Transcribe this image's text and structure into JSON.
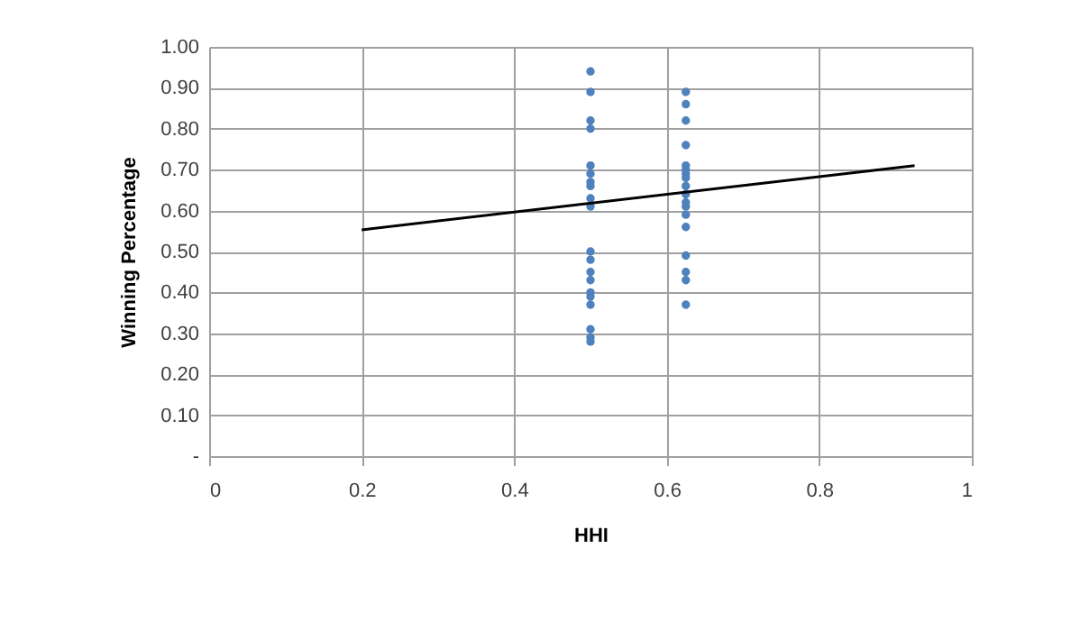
{
  "chart_data": {
    "type": "scatter",
    "xlabel": "HHI",
    "ylabel": "Winning Percentage",
    "xlim": [
      0,
      1
    ],
    "xticks": [
      {
        "value": 0,
        "label": "0"
      },
      0.2,
      0.4,
      0.6,
      0.8,
      {
        "value": 1,
        "label": "1"
      }
    ],
    "ylim": [
      0,
      1
    ],
    "yticks": [
      {
        "value": 0,
        "label": "-"
      },
      {
        "value": 0.1,
        "label": "0.10"
      },
      {
        "value": 0.2,
        "label": "0.20"
      },
      {
        "value": 0.3,
        "label": "0.30"
      },
      {
        "value": 0.4,
        "label": "0.40"
      },
      {
        "value": 0.5,
        "label": "0.50"
      },
      {
        "value": 0.6,
        "label": "0.60"
      },
      {
        "value": 0.7,
        "label": "0.70"
      },
      {
        "value": 0.8,
        "label": "0.80"
      },
      {
        "value": 0.9,
        "label": "0.90"
      },
      {
        "value": 1,
        "label": "1.00"
      }
    ],
    "grid": true,
    "marker": "circle",
    "line_style": "solid",
    "series": [
      {
        "color": "#4f81bd",
        "x": [
          0.5,
          0.5,
          0.5,
          0.5,
          0.5,
          0.5,
          0.5,
          0.5,
          0.5,
          0.5,
          0.5,
          0.5,
          0.5,
          0.5,
          0.5,
          0.5,
          0.5,
          0.5,
          0.5,
          0.5,
          0.625,
          0.625,
          0.625,
          0.625,
          0.625,
          0.625,
          0.625,
          0.625,
          0.625,
          0.625,
          0.625,
          0.625,
          0.625,
          0.625,
          0.625,
          0.625,
          0.625,
          0.625
        ],
        "values": [
          0.94,
          0.89,
          0.82,
          0.8,
          0.71,
          0.69,
          0.67,
          0.66,
          0.63,
          0.61,
          0.5,
          0.48,
          0.45,
          0.43,
          0.4,
          0.39,
          0.37,
          0.31,
          0.29,
          0.28,
          0.89,
          0.86,
          0.82,
          0.76,
          0.71,
          0.7,
          0.69,
          0.68,
          0.66,
          0.64,
          0.62,
          0.61,
          0.59,
          0.56,
          0.49,
          0.45,
          0.43,
          0.37
        ]
      },
      {
        "type": "line",
        "color": "#000000",
        "marker": "none",
        "x": [
          0.2,
          0.925
        ],
        "values": [
          0.553,
          0.71
        ]
      }
    ]
  }
}
